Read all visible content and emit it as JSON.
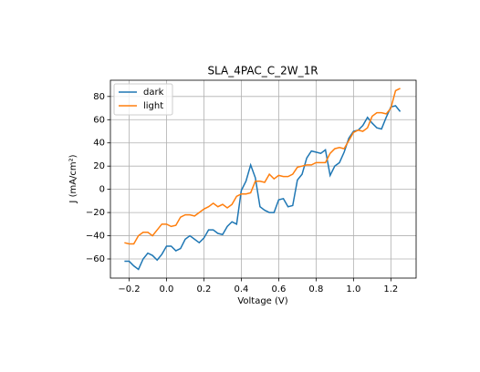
{
  "chart_data": {
    "type": "line",
    "title": "SLA_4PAC_C_2W_1R",
    "x_label": "Voltage (V)",
    "y_label": "J (mA/cm²)",
    "x": [
      -0.225,
      -0.2,
      -0.175,
      -0.15,
      -0.125,
      -0.1,
      -0.075,
      -0.05,
      -0.025,
      0,
      0.025,
      0.05,
      0.075,
      0.1,
      0.125,
      0.15,
      0.175,
      0.2,
      0.225,
      0.25,
      0.275,
      0.3,
      0.325,
      0.35,
      0.375,
      0.4,
      0.425,
      0.45,
      0.475,
      0.5,
      0.525,
      0.55,
      0.575,
      0.6,
      0.625,
      0.65,
      0.675,
      0.7,
      0.725,
      0.75,
      0.775,
      0.8,
      0.825,
      0.85,
      0.875,
      0.9,
      0.925,
      0.95,
      0.975,
      1.0,
      1.025,
      1.05,
      1.075,
      1.1,
      1.125,
      1.15,
      1.175,
      1.2,
      1.225,
      1.25
    ],
    "series": [
      {
        "name": "dark",
        "color": "#1f77b4",
        "values": [
          -62,
          -62,
          -66,
          -69,
          -60,
          -55,
          -57,
          -61,
          -56,
          -49,
          -49,
          -53,
          -51,
          -43,
          -40,
          -43,
          -46,
          -42,
          -35,
          -35,
          -38,
          -39,
          -32,
          -28,
          -30,
          -1,
          7,
          21,
          10,
          -15,
          -18,
          -20,
          -20,
          -9,
          -8,
          -15,
          -14,
          8,
          13,
          27,
          33,
          32,
          31,
          34,
          12,
          20,
          23,
          32,
          44,
          50,
          51,
          55,
          62,
          57,
          53,
          52,
          62,
          71,
          72,
          67
        ]
      },
      {
        "name": "light",
        "color": "#ff7f0e",
        "values": [
          -46,
          -47,
          -47,
          -40,
          -37,
          -37,
          -40,
          -35,
          -30,
          -30,
          -32,
          -31,
          -24,
          -22,
          -22,
          -23,
          -20,
          -17,
          -15,
          -12,
          -15,
          -13,
          -16,
          -13,
          -6,
          -4,
          -4,
          -3,
          7,
          7,
          6,
          13,
          9,
          12,
          11,
          11,
          13,
          19,
          20,
          21,
          21,
          23,
          23,
          23,
          31,
          35,
          36,
          35,
          42,
          49,
          51,
          50,
          53,
          63,
          66,
          66,
          65,
          70,
          85,
          87
        ]
      }
    ],
    "xlim": [
      -0.3,
      1.335
    ],
    "ylim": [
      -76.5,
      94
    ],
    "xticks": [
      {
        "value": -0.2,
        "label": "−0.2"
      },
      {
        "value": 0,
        "label": "0.0"
      },
      0.2,
      0.4,
      0.6,
      0.8,
      {
        "value": 1,
        "label": "1.0"
      },
      1.2
    ],
    "yticks": [
      {
        "value": -60,
        "label": "−60"
      },
      {
        "value": -40,
        "label": "−40"
      },
      {
        "value": -20,
        "label": "−20"
      },
      0,
      20,
      40,
      60,
      80
    ],
    "grid": true,
    "legend": "upper left"
  }
}
